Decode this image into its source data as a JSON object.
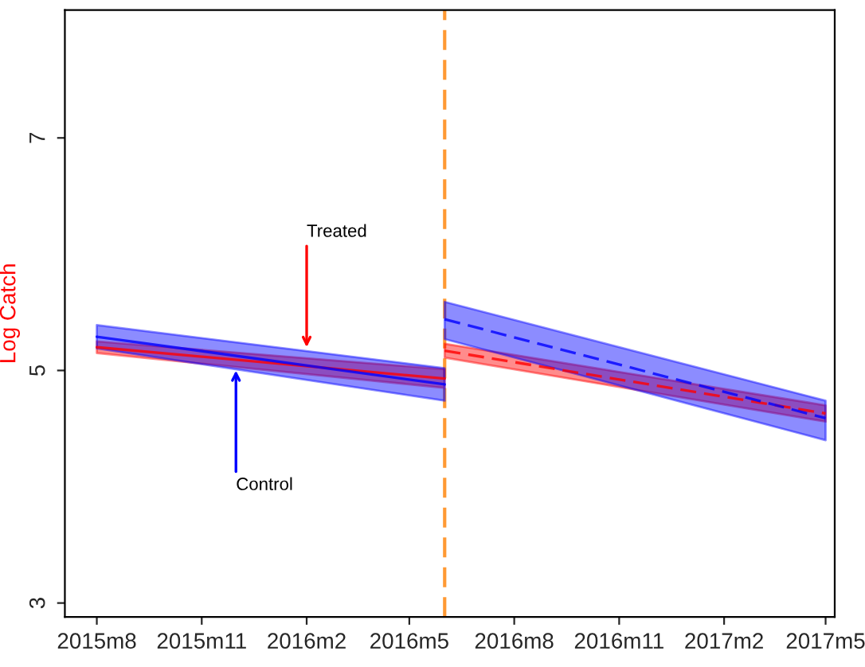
{
  "chart_data": {
    "type": "line",
    "ylabel": "Log Catch",
    "xlim": [
      "2015-07-04",
      "2017-05-09"
    ],
    "ylim": [
      2.88,
      8.1
    ],
    "xticks": [
      {
        "value": "2015-08",
        "label": "2015m8"
      },
      {
        "value": "2015-11",
        "label": "2015m11"
      },
      {
        "value": "2016-02",
        "label": "2016m2"
      },
      {
        "value": "2016-05",
        "label": "2016m5"
      },
      {
        "value": "2016-08",
        "label": "2016m8"
      },
      {
        "value": "2016-11",
        "label": "2016m11"
      },
      {
        "value": "2017-02",
        "label": "2017m2"
      },
      {
        "value": "2017-05",
        "label": "2017m5"
      }
    ],
    "yticks": [
      3,
      5,
      7
    ],
    "grid": false,
    "marker": "none",
    "series": [
      {
        "color": "#ff0000",
        "x": [
          "2015-08",
          "2016-06"
        ],
        "values": [
          5.2,
          4.93
        ],
        "lower": [
          5.15,
          4.85
        ],
        "upper": [
          5.25,
          5.01
        ],
        "line_style": "solid"
      },
      {
        "color": "#0000ff",
        "x": [
          "2015-08",
          "2016-06"
        ],
        "values": [
          5.29,
          4.88
        ],
        "lower": [
          5.19,
          4.74
        ],
        "upper": [
          5.39,
          5.02
        ],
        "line_style": "solid"
      },
      {
        "color": "#ff0000",
        "x": [
          "2016-06",
          "2017-05"
        ],
        "values": [
          5.17,
          4.63
        ],
        "lower": [
          5.11,
          4.56
        ],
        "upper": [
          5.23,
          4.7
        ],
        "line_style": "dashed"
      },
      {
        "color": "#0000ff",
        "x": [
          "2016-06",
          "2017-05"
        ],
        "values": [
          5.44,
          4.59
        ],
        "lower": [
          5.27,
          4.4
        ],
        "upper": [
          5.59,
          4.74
        ],
        "line_style": "dashed"
      }
    ],
    "ref_lines": [
      {
        "axis": "x",
        "value": "2016-06",
        "color": "#ff9933",
        "line_style": "dashed"
      }
    ],
    "annotations": [
      {
        "text": "Treated",
        "x": "2016-02",
        "y": 5.2
      },
      {
        "text": "Control",
        "x": "2015-12",
        "y": 5.0
      }
    ]
  }
}
